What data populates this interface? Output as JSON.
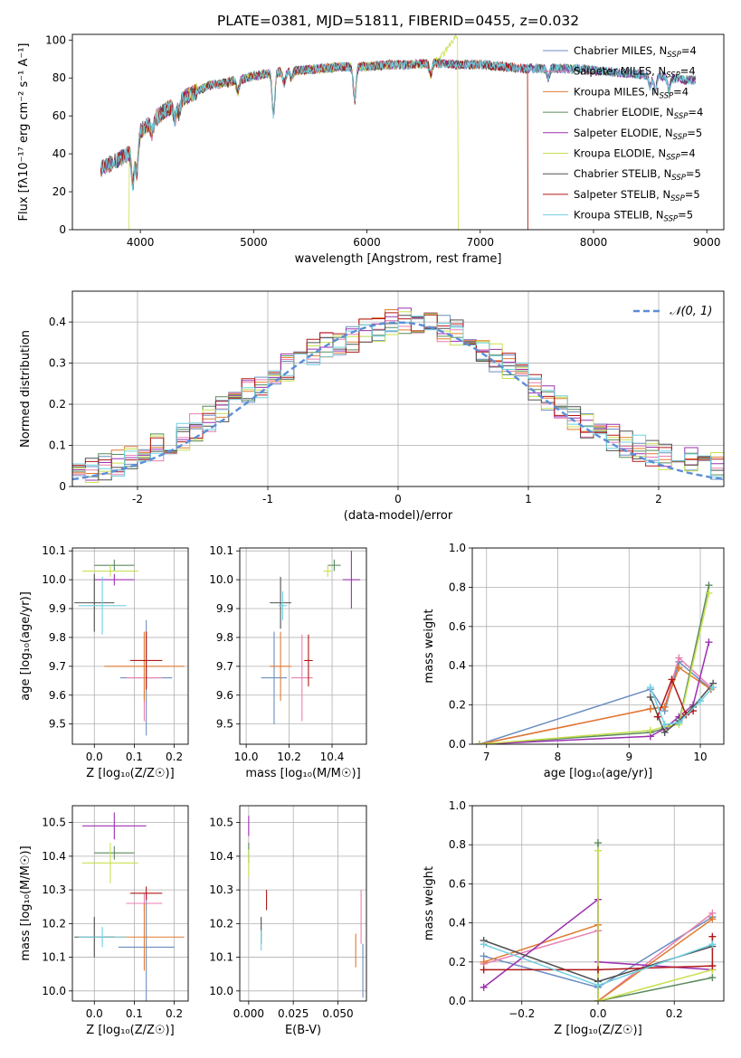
{
  "title": "PLATE=0381, MJD=51811, FIBERID=0455, z=0.032",
  "colors": {
    "Chabrier MILES": "#6c8ebf",
    "Salpeter MILES": "#e87fb0",
    "Kroupa MILES": "#e07b30",
    "Chabrier ELODIE": "#5b8a5e",
    "Salpeter ELODIE": "#9b30b0",
    "Kroupa ELODIE": "#c8e050",
    "Chabrier STELIB": "#505050",
    "Salpeter STELIB": "#b01818",
    "Kroupa STELIB": "#6fd0e0",
    "gauss": "#5b8ed6"
  },
  "chart_data": [
    {
      "id": "spectrum",
      "type": "line",
      "xlabel": "wavelength [Angstrom, rest frame]",
      "ylabel": "Flux [fλ10⁻¹⁷ erg cm⁻² s⁻¹ A⁻¹]",
      "xlim": [
        3400,
        9150
      ],
      "ylim": [
        0,
        103
      ],
      "xticks": [
        4000,
        5000,
        6000,
        7000,
        8000,
        9000
      ],
      "yticks": [
        0,
        20,
        40,
        60,
        80,
        100
      ],
      "grid": false,
      "legend_position": "right",
      "legend": [
        {
          "label": "Chabrier MILES, N",
          "sub": "SSP",
          "n": "=4"
        },
        {
          "label": "Salpeter MILES, N",
          "sub": "SSP",
          "n": "=4"
        },
        {
          "label": "Kroupa MILES, N",
          "sub": "SSP",
          "n": "=4"
        },
        {
          "label": "Chabrier ELODIE, N",
          "sub": "SSP",
          "n": "=4"
        },
        {
          "label": "Salpeter ELODIE, N",
          "sub": "SSP",
          "n": "=5"
        },
        {
          "label": "Kroupa ELODIE, N",
          "sub": "SSP",
          "n": "=4"
        },
        {
          "label": "Chabrier STELIB, N",
          "sub": "SSP",
          "n": "=5"
        },
        {
          "label": "Salpeter STELIB, N",
          "sub": "SSP",
          "n": "=5"
        },
        {
          "label": "Kroupa STELIB, N",
          "sub": "SSP",
          "n": "=5"
        }
      ],
      "continuum": {
        "x": [
          3650,
          3900,
          4000,
          4200,
          4400,
          4600,
          4800,
          5000,
          5200,
          5400,
          5600,
          5800,
          6000,
          6200,
          6400,
          6600,
          6800,
          7000,
          7200,
          7400,
          7600,
          7800,
          8000,
          8200,
          8400,
          8600,
          8800
        ],
        "y": [
          32,
          40,
          52,
          62,
          70,
          76,
          78,
          81,
          83,
          84,
          85,
          86,
          86,
          87,
          87,
          88,
          87,
          87,
          86,
          85,
          85,
          85,
          84,
          83,
          82,
          81,
          79
        ]
      },
      "absorption": [
        {
          "x": 3934,
          "depth": 20
        },
        {
          "x": 3969,
          "depth": 18
        },
        {
          "x": 4102,
          "depth": 6
        },
        {
          "x": 4305,
          "depth": 8
        },
        {
          "x": 4341,
          "depth": 6
        },
        {
          "x": 4861,
          "depth": 6
        },
        {
          "x": 5175,
          "depth": 22
        },
        {
          "x": 5270,
          "depth": 6
        },
        {
          "x": 5335,
          "depth": 4
        },
        {
          "x": 5892,
          "depth": 18
        },
        {
          "x": 6563,
          "depth": 6
        },
        {
          "x": 7600,
          "depth": 5
        },
        {
          "x": 8500,
          "depth": 6
        },
        {
          "x": 8545,
          "depth": 8
        },
        {
          "x": 8665,
          "depth": 7
        }
      ],
      "truncations": [
        {
          "model": "Kroupa ELODIE",
          "x": [
            3900,
            6800
          ],
          "drop_to": 0,
          "peak_before": 103
        },
        {
          "model": "Kroupa MILES",
          "x": [
            7420
          ],
          "drop_to": 0
        },
        {
          "model": "Salpeter STELIB",
          "x": [
            7420
          ],
          "drop_to": 0
        }
      ]
    },
    {
      "id": "residuals",
      "type": "step",
      "xlabel": "(data-model)/error",
      "ylabel": "Normed distribution",
      "xlim": [
        -2.5,
        2.5
      ],
      "ylim": [
        0,
        0.475
      ],
      "xticks": [
        -2,
        -1,
        0,
        1,
        2
      ],
      "yticks": [
        0.0,
        0.1,
        0.2,
        0.3,
        0.4
      ],
      "grid": true,
      "legend": [
        {
          "label": "𝒩(0, 1)"
        }
      ],
      "legend_position": "upper right",
      "gaussian": {
        "mean": 0,
        "sigma": 1
      },
      "bin_width": 0.1,
      "histogram_envelope": {
        "x": [
          -2.45,
          -2.05,
          -1.65,
          -1.25,
          -0.95,
          -0.65,
          -0.35,
          -0.05,
          0.25,
          0.55,
          0.85,
          1.15,
          1.45,
          1.75,
          2.05,
          2.45
        ],
        "y": [
          0.03,
          0.07,
          0.12,
          0.21,
          0.27,
          0.33,
          0.36,
          0.4,
          0.4,
          0.36,
          0.29,
          0.22,
          0.15,
          0.1,
          0.07,
          0.05
        ]
      }
    },
    {
      "id": "age-vs-Z",
      "type": "errorbar",
      "xlabel": "Z [log₁₀(Z/Z☉)]",
      "ylabel": "age  [log₁₀(age/yr)]",
      "xlim": [
        -0.055,
        0.235
      ],
      "ylim": [
        9.43,
        10.11
      ],
      "xticks": [
        "0.0",
        "0.1",
        "0.2"
      ],
      "yticks": [
        "9.5",
        "9.6",
        "9.7",
        "9.8",
        "9.9",
        "10.0",
        "10.1"
      ],
      "grid": true,
      "points": [
        {
          "model": "Chabrier MILES",
          "x": 0.13,
          "xerr": 0.065,
          "y": 9.66,
          "yerr": 0.2
        },
        {
          "model": "Salpeter MILES",
          "x": 0.125,
          "xerr": 0.045,
          "y": 9.66,
          "yerr": 0.15
        },
        {
          "model": "Kroupa MILES",
          "x": 0.125,
          "xerr": 0.1,
          "y": 9.7,
          "yerr": 0.12
        },
        {
          "model": "Chabrier ELODIE",
          "x": 0.05,
          "xerr": 0.05,
          "y": 10.05,
          "yerr": 0.02
        },
        {
          "model": "Salpeter ELODIE",
          "x": 0.05,
          "xerr": 0.05,
          "y": 10.0,
          "yerr": 0.02
        },
        {
          "model": "Kroupa ELODIE",
          "x": 0.04,
          "xerr": 0.07,
          "y": 10.03,
          "yerr": 0.02
        },
        {
          "model": "Chabrier STELIB",
          "x": 0.0,
          "xerr": 0.05,
          "y": 9.92,
          "yerr": 0.1
        },
        {
          "model": "Salpeter STELIB",
          "x": 0.13,
          "xerr": 0.04,
          "y": 9.72,
          "yerr": 0.1
        },
        {
          "model": "Kroupa STELIB",
          "x": 0.02,
          "xerr": 0.06,
          "y": 9.91,
          "yerr": 0.1
        }
      ]
    },
    {
      "id": "age-vs-mass",
      "type": "errorbar",
      "xlabel": "mass [log₁₀(M/M☉)]",
      "ylabel": "",
      "xlim": [
        9.97,
        10.56
      ],
      "ylim": [
        9.43,
        10.11
      ],
      "xticks": [
        "10.0",
        "10.2",
        "10.4"
      ],
      "yticks": [
        "9.5",
        "9.6",
        "9.7",
        "9.8",
        "9.9",
        "10.0",
        "10.1"
      ],
      "grid": true,
      "points": [
        {
          "model": "Chabrier MILES",
          "x": 10.13,
          "xerr": 0.06,
          "y": 9.66,
          "yerr": 0.16
        },
        {
          "model": "Salpeter MILES",
          "x": 10.26,
          "xerr": 0.05,
          "y": 9.66,
          "yerr": 0.15
        },
        {
          "model": "Kroupa MILES",
          "x": 10.16,
          "xerr": 0.05,
          "y": 9.7,
          "yerr": 0.12
        },
        {
          "model": "Chabrier ELODIE",
          "x": 10.41,
          "xerr": 0.03,
          "y": 10.05,
          "yerr": 0.02
        },
        {
          "model": "Salpeter ELODIE",
          "x": 10.49,
          "xerr": 0.04,
          "y": 10.0,
          "yerr": 0.1
        },
        {
          "model": "Kroupa ELODIE",
          "x": 10.38,
          "xerr": 0.02,
          "y": 10.03,
          "yerr": 0.02
        },
        {
          "model": "Chabrier STELIB",
          "x": 10.16,
          "xerr": 0.05,
          "y": 9.92,
          "yerr": 0.09
        },
        {
          "model": "Salpeter STELIB",
          "x": 10.29,
          "xerr": 0.02,
          "y": 9.72,
          "yerr": 0.09
        },
        {
          "model": "Kroupa STELIB",
          "x": 10.17,
          "xerr": 0.02,
          "y": 9.91,
          "yerr": 0.05
        }
      ]
    },
    {
      "id": "weight-vs-age",
      "type": "line",
      "xlabel": "age  [log₁₀(age/yr)]",
      "ylabel": "mass weight",
      "xlim": [
        6.8,
        10.33
      ],
      "ylim": [
        0,
        1.0
      ],
      "xticks": [
        "7",
        "8",
        "9",
        "10"
      ],
      "yticks": [
        "0.0",
        "0.2",
        "0.4",
        "0.6",
        "0.8",
        "1.0"
      ],
      "grid": true,
      "series": [
        {
          "model": "Chabrier MILES",
          "x": [
            6.9,
            9.3,
            9.5,
            9.7,
            10.15
          ],
          "y": [
            0.0,
            0.28,
            0.17,
            0.42,
            0.28
          ]
        },
        {
          "model": "Salpeter MILES",
          "x": [
            6.9,
            9.3,
            9.5,
            9.7,
            10.15
          ],
          "y": [
            0.0,
            0.18,
            0.19,
            0.44,
            0.29
          ]
        },
        {
          "model": "Kroupa MILES",
          "x": [
            6.9,
            9.3,
            9.5,
            9.7,
            10.15
          ],
          "y": [
            0.0,
            0.18,
            0.19,
            0.39,
            0.28
          ]
        },
        {
          "model": "Chabrier ELODIE",
          "x": [
            6.9,
            9.3,
            9.5,
            9.7,
            10.12
          ],
          "y": [
            0.0,
            0.06,
            0.08,
            0.11,
            0.81
          ]
        },
        {
          "model": "Salpeter ELODIE",
          "x": [
            6.9,
            9.3,
            9.5,
            9.7,
            9.9,
            10.12
          ],
          "y": [
            0.0,
            0.04,
            0.08,
            0.14,
            0.2,
            0.52
          ]
        },
        {
          "model": "Kroupa ELODIE",
          "x": [
            6.9,
            9.3,
            9.5,
            9.7,
            10.12
          ],
          "y": [
            0.0,
            0.07,
            0.09,
            0.1,
            0.77
          ]
        },
        {
          "model": "Chabrier STELIB",
          "x": [
            9.3,
            9.5,
            9.7,
            9.9,
            10.18
          ],
          "y": [
            0.24,
            0.06,
            0.12,
            0.19,
            0.31
          ]
        },
        {
          "model": "Salpeter STELIB",
          "x": [
            9.4,
            9.6,
            9.8,
            9.9
          ],
          "y": [
            0.14,
            0.33,
            0.15,
            0.17
          ]
        },
        {
          "model": "Kroupa STELIB",
          "x": [
            9.3,
            9.5,
            9.7,
            10.0,
            10.18
          ],
          "y": [
            0.29,
            0.1,
            0.11,
            0.22,
            0.29
          ]
        }
      ]
    },
    {
      "id": "mass-vs-Z",
      "type": "errorbar",
      "xlabel": "Z [log₁₀(Z/Z☉)]",
      "ylabel": "mass [log₁₀(M/M☉)]",
      "xlim": [
        -0.055,
        0.235
      ],
      "ylim": [
        9.97,
        10.55
      ],
      "xticks": [
        "0.0",
        "0.1",
        "0.2"
      ],
      "yticks": [
        "10.0",
        "10.1",
        "10.2",
        "10.3",
        "10.4",
        "10.5"
      ],
      "grid": true,
      "points": [
        {
          "model": "Chabrier MILES",
          "x": 0.13,
          "xerr": 0.07,
          "y": 10.13,
          "yerr": 0.16
        },
        {
          "model": "Salpeter MILES",
          "x": 0.125,
          "xerr": 0.045,
          "y": 10.26,
          "yerr": 0.03
        },
        {
          "model": "Kroupa MILES",
          "x": 0.125,
          "xerr": 0.1,
          "y": 10.16,
          "yerr": 0.1
        },
        {
          "model": "Chabrier ELODIE",
          "x": 0.05,
          "xerr": 0.05,
          "y": 10.41,
          "yerr": 0.02
        },
        {
          "model": "Salpeter ELODIE",
          "x": 0.05,
          "xerr": 0.08,
          "y": 10.49,
          "yerr": 0.04
        },
        {
          "model": "Kroupa ELODIE",
          "x": 0.04,
          "xerr": 0.07,
          "y": 10.38,
          "yerr": 0.06
        },
        {
          "model": "Chabrier STELIB",
          "x": 0.0,
          "xerr": 0.05,
          "y": 10.16,
          "yerr": 0.06
        },
        {
          "model": "Salpeter STELIB",
          "x": 0.13,
          "xerr": 0.04,
          "y": 10.29,
          "yerr": 0.02
        },
        {
          "model": "Kroupa STELIB",
          "x": 0.02,
          "xerr": 0.06,
          "y": 10.16,
          "yerr": 0.03
        }
      ]
    },
    {
      "id": "mass-vs-ebv",
      "type": "errorbar",
      "xlabel": "E(B-V)",
      "ylabel": "",
      "xlim": [
        -0.005,
        0.066
      ],
      "ylim": [
        9.97,
        10.55
      ],
      "xticks": [
        "0.000",
        "0.025",
        "0.050"
      ],
      "yticks": [
        "10.0",
        "10.1",
        "10.2",
        "10.3",
        "10.4",
        "10.5"
      ],
      "grid": true,
      "points": [
        {
          "model": "Chabrier MILES",
          "x": 0.064,
          "xerr": 0.0,
          "y": 10.06,
          "yerr": 0.08
        },
        {
          "model": "Salpeter MILES",
          "x": 0.063,
          "xerr": 0.0,
          "y": 10.22,
          "yerr": 0.08
        },
        {
          "model": "Kroupa MILES",
          "x": 0.06,
          "xerr": 0.0,
          "y": 10.12,
          "yerr": 0.05
        },
        {
          "model": "Chabrier ELODIE",
          "x": 0.0,
          "xerr": 0.0,
          "y": 10.41,
          "yerr": 0.03
        },
        {
          "model": "Salpeter ELODIE",
          "x": 0.0,
          "xerr": 0.0,
          "y": 10.49,
          "yerr": 0.03
        },
        {
          "model": "Kroupa ELODIE",
          "x": 0.0,
          "xerr": 0.0,
          "y": 10.38,
          "yerr": 0.04
        },
        {
          "model": "Chabrier STELIB",
          "x": 0.007,
          "xerr": 0.0,
          "y": 10.18,
          "yerr": 0.04
        },
        {
          "model": "Salpeter STELIB",
          "x": 0.01,
          "xerr": 0.0,
          "y": 10.27,
          "yerr": 0.03
        },
        {
          "model": "Kroupa STELIB",
          "x": 0.007,
          "xerr": 0.0,
          "y": 10.15,
          "yerr": 0.03
        }
      ]
    },
    {
      "id": "weight-vs-Z",
      "type": "line",
      "xlabel": "Z [log₁₀(Z/Z☉)]",
      "ylabel": "mass weight",
      "xlim": [
        -0.33,
        0.33
      ],
      "ylim": [
        0,
        1.0
      ],
      "xticks": [
        "−0.2",
        "0.0",
        "0.2"
      ],
      "yticks": [
        "0.0",
        "0.2",
        "0.4",
        "0.6",
        "0.8",
        "1.0"
      ],
      "grid": true,
      "series": [
        {
          "model": "Chabrier MILES",
          "x": [
            -0.3,
            0.0,
            0.3
          ],
          "y": [
            0.23,
            0.07,
            0.43
          ]
        },
        {
          "model": "Salpeter MILES",
          "x": [
            -0.3,
            0.0,
            0.0,
            0.3
          ],
          "y": [
            0.19,
            0.36,
            0.0,
            0.45
          ]
        },
        {
          "model": "Kroupa MILES",
          "x": [
            -0.3,
            0.0,
            0.0,
            0.3
          ],
          "y": [
            0.2,
            0.39,
            0.0,
            0.42
          ]
        },
        {
          "model": "Chabrier ELODIE",
          "x": [
            0.0,
            0.0,
            0.3
          ],
          "y": [
            0.81,
            0.0,
            0.12
          ]
        },
        {
          "model": "Salpeter ELODIE",
          "x": [
            -0.3,
            0.0,
            0.0,
            0.3
          ],
          "y": [
            0.07,
            0.52,
            0.2,
            0.16
          ]
        },
        {
          "model": "Kroupa ELODIE",
          "x": [
            0.0,
            0.0,
            0.3
          ],
          "y": [
            0.77,
            0.0,
            0.16
          ]
        },
        {
          "model": "Chabrier STELIB",
          "x": [
            -0.3,
            0.0,
            0.3
          ],
          "y": [
            0.31,
            0.1,
            0.28
          ]
        },
        {
          "model": "Salpeter STELIB",
          "x": [
            -0.3,
            0.0,
            0.3,
            0.3
          ],
          "y": [
            0.16,
            0.16,
            0.18,
            0.33
          ]
        },
        {
          "model": "Kroupa STELIB",
          "x": [
            -0.3,
            0.0,
            0.3
          ],
          "y": [
            0.29,
            0.08,
            0.29
          ]
        }
      ]
    }
  ]
}
